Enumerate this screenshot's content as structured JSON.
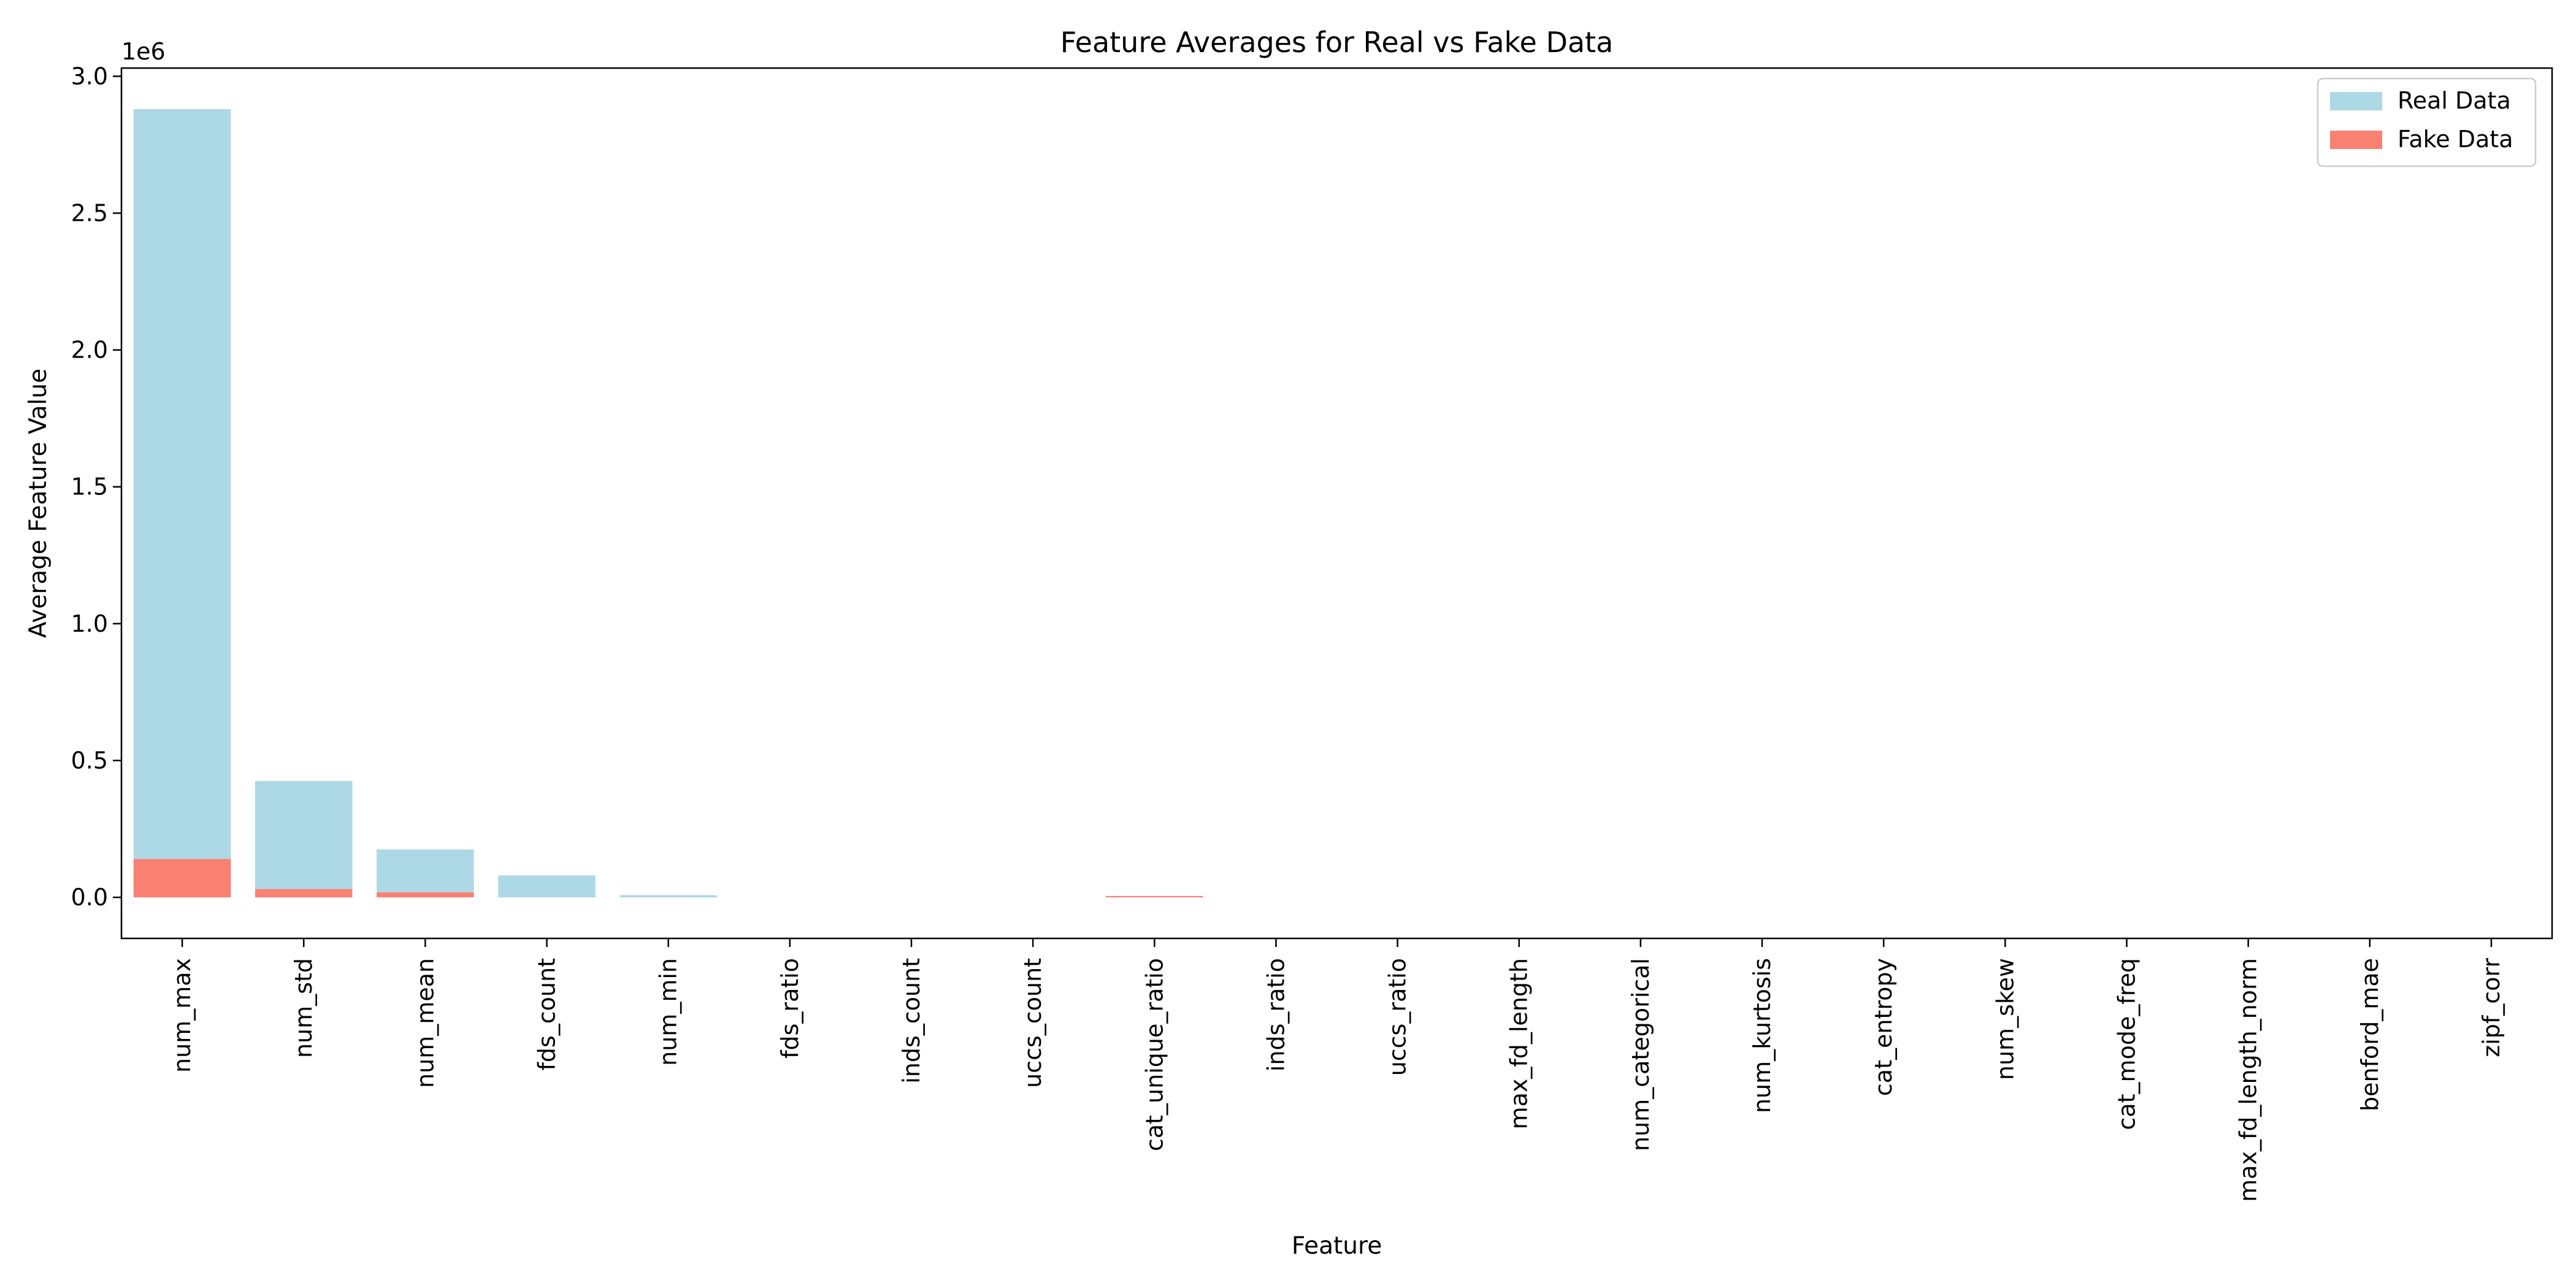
{
  "chart_data": {
    "type": "bar",
    "title": "Feature Averages for Real vs Fake Data",
    "xlabel": "Feature",
    "ylabel": "Average Feature Value",
    "y_scale_note": "1e6",
    "ylim": [
      -0.15,
      3.03
    ],
    "yticks": [
      0.0,
      0.5,
      1.0,
      1.5,
      2.0,
      2.5,
      3.0
    ],
    "ytick_labels": [
      "0.0",
      "0.5",
      "1.0",
      "1.5",
      "2.0",
      "2.5",
      "3.0"
    ],
    "grid": false,
    "legend_position": "top-right",
    "overlay": true,
    "categories": [
      "num_max",
      "num_std",
      "num_mean",
      "fds_count",
      "num_min",
      "fds_ratio",
      "inds_count",
      "uccs_count",
      "cat_unique_ratio",
      "inds_ratio",
      "uccs_ratio",
      "max_fd_length",
      "num_categorical",
      "num_kurtosis",
      "cat_entropy",
      "num_skew",
      "cat_mode_freq",
      "max_fd_length_norm",
      "benford_mae",
      "zipf_corr"
    ],
    "series": [
      {
        "name": "Real Data",
        "color": "#add8e6",
        "values": [
          2.88,
          0.425,
          0.175,
          0.08,
          0.008,
          0.0,
          0.0,
          0.0,
          0.003,
          0.0,
          0.0,
          0.0,
          0.0,
          0.0,
          0.0,
          0.0,
          0.0,
          0.0,
          0.0,
          0.0
        ]
      },
      {
        "name": "Fake Data",
        "color": "#fa8072",
        "values": [
          0.14,
          0.03,
          0.018,
          0.0,
          0.0,
          0.0,
          0.0,
          0.0,
          0.005,
          0.0,
          0.0,
          0.0,
          0.0,
          0.0,
          0.0,
          0.0,
          0.0,
          0.0,
          0.0,
          0.0
        ]
      }
    ]
  }
}
